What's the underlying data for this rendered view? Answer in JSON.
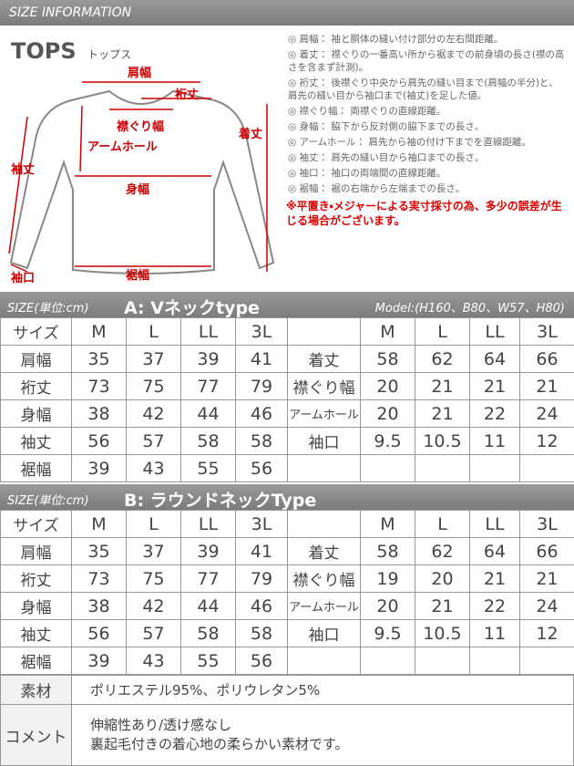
{
  "header": {
    "title": "SIZE INFORMATION"
  },
  "diagram": {
    "title": "TOPS",
    "subtitle": "トップス",
    "labels": {
      "shoulder": "肩幅",
      "yuki": "裄丈",
      "neck": "襟ぐり幅",
      "armhole": "アームホール",
      "length": "着丈",
      "sleeve": "袖丈",
      "body": "身幅",
      "cuff": "袖口",
      "hem": "裾幅"
    }
  },
  "notes": {
    "items": [
      "◎ 肩幅： 袖と胴体の縫い付け部分の左右間距離。",
      "◎ 着丈： 襟ぐりの一番高い所から裾までの前身頃の長さ(襟の高さを含まず計測)。",
      "◎ 裄丈： 後襟ぐり中央から肩先の縫い目まで(肩幅の半分)と、肩先の縫い目から袖口まで(袖丈)を足した値。",
      "◎ 襟ぐり幅： 両襟ぐりの直線距離。",
      "◎ 身幅： 脇下から反対側の脇下までの長さ。",
      "◎ アームホール： 肩先から袖の付け下までを直線距離。",
      "◎ 袖丈： 肩先の縫い目から袖口までの長さ。",
      "◎ 袖口： 袖口の両端間の直線距離。",
      "◎ 裾幅： 裾の右端から左端までの長さ。"
    ],
    "warning": "※平置き・メジャーによる実寸採寸の為、多少の誤差が生じる場合がございます。"
  },
  "tables": [
    {
      "unit": "SIZE(単位:cm)",
      "title": "A: Vネックtype",
      "model": "Model:(H160、B80、W57、H80)",
      "left_header": [
        "サイズ",
        "M",
        "L",
        "LL",
        "3L"
      ],
      "right_header": [
        "M",
        "L",
        "LL",
        "3L"
      ],
      "left_rows": [
        [
          "肩幅",
          35,
          37,
          39,
          41
        ],
        [
          "裄丈",
          73,
          75,
          77,
          79
        ],
        [
          "身幅",
          38,
          42,
          44,
          46
        ],
        [
          "袖丈",
          56,
          57,
          58,
          58
        ],
        [
          "裾幅",
          39,
          43,
          55,
          56
        ]
      ],
      "right_rows": [
        [
          "着丈",
          58,
          62,
          64,
          66
        ],
        [
          "襟ぐり幅",
          20,
          21,
          21,
          21
        ],
        [
          "アームホール",
          20,
          21,
          22,
          24
        ],
        [
          "袖口",
          9.5,
          10.5,
          11,
          12
        ]
      ]
    },
    {
      "unit": "SIZE(単位:cm)",
      "title": "B: ラウンドネックType",
      "left_header": [
        "サイズ",
        "M",
        "L",
        "LL",
        "3L"
      ],
      "right_header": [
        "M",
        "L",
        "LL",
        "3L"
      ],
      "left_rows": [
        [
          "肩幅",
          35,
          37,
          39,
          41
        ],
        [
          "裄丈",
          73,
          75,
          77,
          79
        ],
        [
          "身幅",
          38,
          42,
          44,
          46
        ],
        [
          "袖丈",
          56,
          57,
          58,
          58
        ],
        [
          "裾幅",
          39,
          43,
          55,
          56
        ]
      ],
      "right_rows": [
        [
          "着丈",
          58,
          62,
          64,
          66
        ],
        [
          "襟ぐり幅",
          19,
          20,
          21,
          21
        ],
        [
          "アームホール",
          20,
          21,
          22,
          24
        ],
        [
          "袖口",
          9.5,
          10.5,
          11,
          12
        ]
      ]
    }
  ],
  "material": {
    "label": "素材",
    "value": "ポリエステル95%、ポリウレタン5%"
  },
  "comment": {
    "label": "コメント",
    "lines": [
      "伸縮性あり/透け感なし",
      "裏起毛付きの着心地の柔らかい素材です。"
    ]
  }
}
